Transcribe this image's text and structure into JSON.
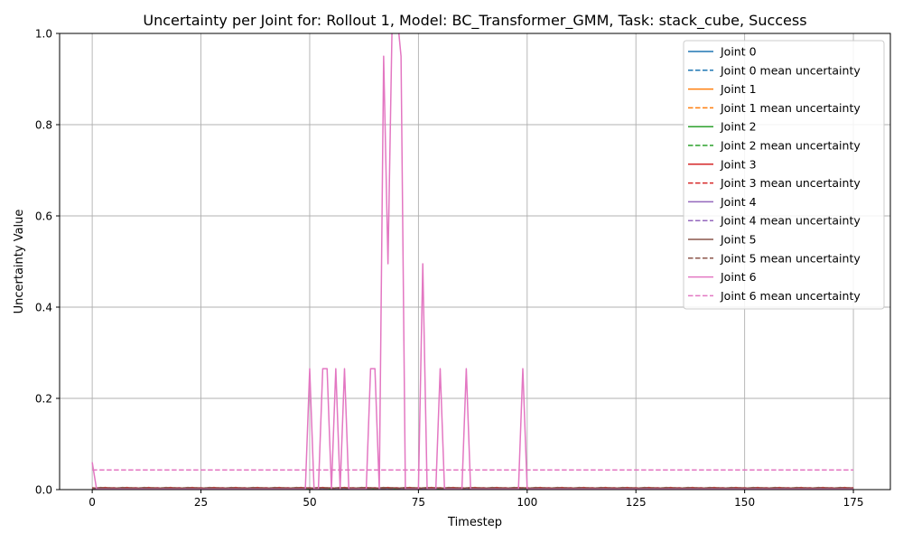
{
  "chart_data": {
    "type": "line",
    "title": "Uncertainty per Joint for: Rollout 1, Model: BC_Transformer_GMM, Task: stack_cube, Success",
    "xlabel": "Timestep",
    "ylabel": "Uncertainty Value",
    "xlim": [
      -7.5,
      183.5
    ],
    "ylim": [
      0,
      1.0
    ],
    "xticks": [
      0,
      25,
      50,
      75,
      100,
      125,
      150,
      175
    ],
    "yticks": [
      0.0,
      0.2,
      0.4,
      0.6,
      0.8,
      1.0
    ],
    "xtick_labels": [
      "0",
      "25",
      "50",
      "75",
      "100",
      "125",
      "150",
      "175"
    ],
    "ytick_labels": [
      "0.0",
      "0.2",
      "0.4",
      "0.6",
      "0.8",
      "1.0"
    ],
    "grid": true,
    "legend_position": "top-right",
    "x_range": [
      0,
      175
    ],
    "series": [
      {
        "name": "Joint 0",
        "color": "#1f77b4",
        "style": "solid",
        "values": [
          0.002,
          0.001
        ],
        "baseline": 0.002
      },
      {
        "name": "Joint 0 mean uncertainty",
        "color": "#1f77b4",
        "style": "dashed",
        "constant": 0.002
      },
      {
        "name": "Joint 1",
        "color": "#ff7f0e",
        "style": "solid",
        "values": [
          0.002,
          0.001
        ],
        "baseline": 0.002
      },
      {
        "name": "Joint 1 mean uncertainty",
        "color": "#ff7f0e",
        "style": "dashed",
        "constant": 0.002
      },
      {
        "name": "Joint 2",
        "color": "#2ca02c",
        "style": "solid",
        "values": [
          0.002,
          0.001
        ],
        "baseline": 0.002
      },
      {
        "name": "Joint 2 mean uncertainty",
        "color": "#2ca02c",
        "style": "dashed",
        "constant": 0.002
      },
      {
        "name": "Joint 3",
        "color": "#d62728",
        "style": "solid",
        "values": [
          0.003,
          0.001
        ],
        "baseline": 0.003
      },
      {
        "name": "Joint 3 mean uncertainty",
        "color": "#d62728",
        "style": "dashed",
        "constant": 0.003
      },
      {
        "name": "Joint 4",
        "color": "#9467bd",
        "style": "solid",
        "values": [
          0.002,
          0.001
        ],
        "baseline": 0.002
      },
      {
        "name": "Joint 4 mean uncertainty",
        "color": "#9467bd",
        "style": "dashed",
        "constant": 0.002
      },
      {
        "name": "Joint 5",
        "color": "#8c564b",
        "style": "solid",
        "values": [
          0.003,
          0.001
        ],
        "baseline": 0.003
      },
      {
        "name": "Joint 5 mean uncertainty",
        "color": "#8c564b",
        "style": "dashed",
        "constant": 0.003
      },
      {
        "name": "Joint 6",
        "color": "#e377c2",
        "style": "solid",
        "baseline": 0.001,
        "points": [
          [
            0,
            0.06
          ],
          [
            1,
            0.001
          ],
          [
            49,
            0.001
          ],
          [
            50,
            0.265
          ],
          [
            51,
            0.001
          ],
          [
            52,
            0.001
          ],
          [
            53,
            0.265
          ],
          [
            54,
            0.265
          ],
          [
            55,
            0.001
          ],
          [
            56,
            0.265
          ],
          [
            57,
            0.001
          ],
          [
            58,
            0.265
          ],
          [
            59,
            0.001
          ],
          [
            63,
            0.001
          ],
          [
            64,
            0.265
          ],
          [
            65,
            0.265
          ],
          [
            66,
            0.001
          ],
          [
            67,
            0.95
          ],
          [
            68,
            0.495
          ],
          [
            69,
            1.05
          ],
          [
            70,
            1.05
          ],
          [
            71,
            0.95
          ],
          [
            72,
            0.001
          ],
          [
            75,
            0.001
          ],
          [
            76,
            0.495
          ],
          [
            77,
            0.001
          ],
          [
            79,
            0.001
          ],
          [
            80,
            0.265
          ],
          [
            81,
            0.001
          ],
          [
            85,
            0.001
          ],
          [
            86,
            0.265
          ],
          [
            87,
            0.001
          ],
          [
            98,
            0.001
          ],
          [
            99,
            0.265
          ],
          [
            100,
            0.001
          ],
          [
            175,
            0.001
          ]
        ]
      },
      {
        "name": "Joint 6 mean uncertainty",
        "color": "#e377c2",
        "style": "dashed",
        "constant": 0.043
      }
    ]
  }
}
